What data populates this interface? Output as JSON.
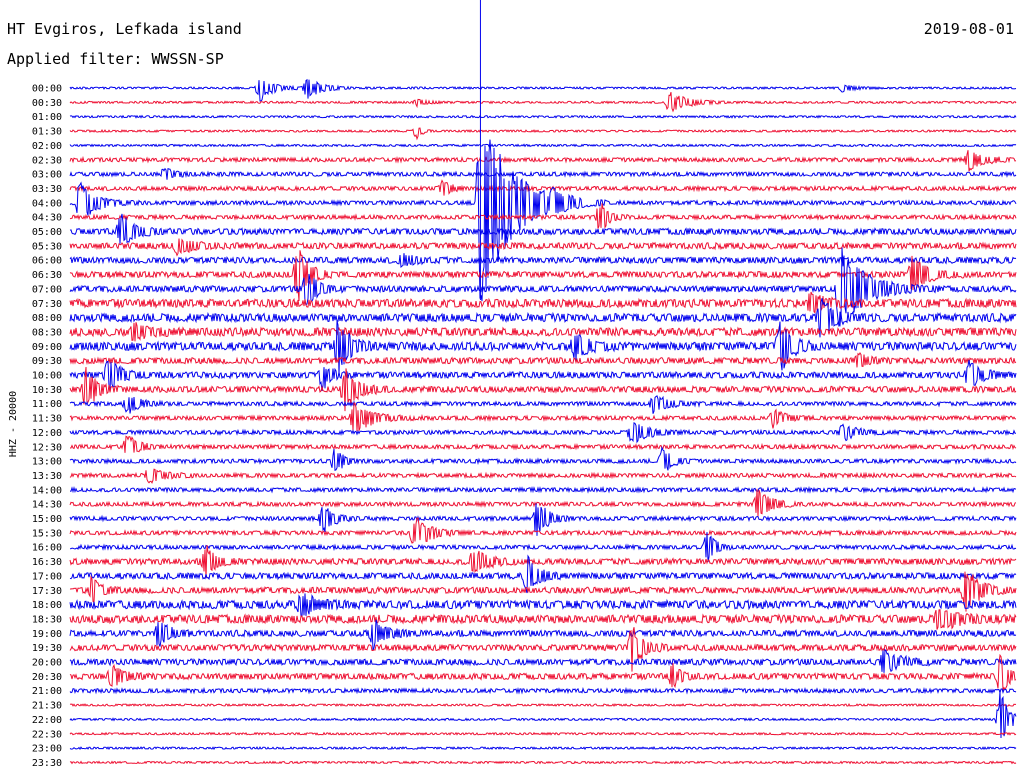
{
  "header": {
    "station": "HT Evgiros, Lefkada island",
    "date": "2019-08-01",
    "filter": "Applied filter: WWSSN-SP"
  },
  "chart_data": {
    "type": "line",
    "title": "HT Evgiros, Lefkada island",
    "subtitle": "Applied filter: WWSSN-SP",
    "ylabel": "HHZ - 20000",
    "date": "2019-08-01",
    "time_labels": [
      "00:00",
      "00:30",
      "01:00",
      "01:30",
      "02:00",
      "02:30",
      "03:00",
      "03:30",
      "04:00",
      "04:30",
      "05:00",
      "05:30",
      "06:00",
      "06:30",
      "07:00",
      "07:30",
      "08:00",
      "08:30",
      "09:00",
      "09:30",
      "10:00",
      "10:30",
      "11:00",
      "11:30",
      "12:00",
      "12:30",
      "13:00",
      "13:30",
      "14:00",
      "14:30",
      "15:00",
      "15:30",
      "16:00",
      "16:30",
      "17:00",
      "17:30",
      "18:00",
      "18:30",
      "19:00",
      "19:30",
      "20:00",
      "20:30",
      "21:00",
      "21:30",
      "22:00",
      "22:30",
      "23:00",
      "23:30"
    ],
    "row_colors": [
      "#0000ee",
      "#ee1133"
    ],
    "noise_level": [
      1,
      1,
      1,
      1,
      1,
      2,
      2,
      2,
      2,
      2,
      3,
      3,
      3,
      3,
      3,
      4,
      4,
      4,
      4,
      3,
      3,
      3,
      2,
      2,
      2,
      2,
      2,
      2,
      2,
      2,
      2,
      2,
      2,
      3,
      3,
      3,
      4,
      4,
      3,
      3,
      3,
      3,
      2,
      1,
      1,
      1,
      1,
      1
    ],
    "events": [
      {
        "row": 0,
        "minute": 6.0,
        "amplitude": 14,
        "duration": 1.0
      },
      {
        "row": 0,
        "minute": 7.5,
        "amplitude": 12,
        "duration": 1.0
      },
      {
        "row": 0,
        "minute": 24.5,
        "amplitude": 4,
        "duration": 0.8
      },
      {
        "row": 1,
        "minute": 11.0,
        "amplitude": 4,
        "duration": 0.8
      },
      {
        "row": 1,
        "minute": 19.0,
        "amplitude": 11,
        "duration": 1.5
      },
      {
        "row": 3,
        "minute": 11.0,
        "amplitude": 8,
        "duration": 0.3
      },
      {
        "row": 5,
        "minute": 28.5,
        "amplitude": 12,
        "duration": 1.0
      },
      {
        "row": 6,
        "minute": 3.0,
        "amplitude": 6,
        "duration": 0.8
      },
      {
        "row": 7,
        "minute": 11.8,
        "amplitude": 8,
        "duration": 0.6
      },
      {
        "row": 8,
        "minute": 0.3,
        "amplitude": 22,
        "duration": 1.2
      },
      {
        "row": 8,
        "minute": 13.0,
        "amplitude": 108,
        "duration": 2.5
      },
      {
        "row": 8,
        "minute": 15.3,
        "amplitude": 9,
        "duration": 0.8
      },
      {
        "row": 9,
        "minute": 16.8,
        "amplitude": 18,
        "duration": 0.6
      },
      {
        "row": 10,
        "minute": 1.6,
        "amplitude": 18,
        "duration": 1.0
      },
      {
        "row": 11,
        "minute": 3.4,
        "amplitude": 8,
        "duration": 1.2
      },
      {
        "row": 12,
        "minute": 10.5,
        "amplitude": 7,
        "duration": 1.0
      },
      {
        "row": 13,
        "minute": 7.2,
        "amplitude": 30,
        "duration": 0.8
      },
      {
        "row": 13,
        "minute": 26.7,
        "amplitude": 18,
        "duration": 1.2
      },
      {
        "row": 14,
        "minute": 7.5,
        "amplitude": 20,
        "duration": 0.8
      },
      {
        "row": 14,
        "minute": 24.4,
        "amplitude": 45,
        "duration": 2.0
      },
      {
        "row": 15,
        "minute": 23.5,
        "amplitude": 12,
        "duration": 1.0
      },
      {
        "row": 16,
        "minute": 23.8,
        "amplitude": 22,
        "duration": 1.0
      },
      {
        "row": 17,
        "minute": 2.0,
        "amplitude": 8,
        "duration": 1.2
      },
      {
        "row": 18,
        "minute": 8.5,
        "amplitude": 30,
        "duration": 0.8
      },
      {
        "row": 18,
        "minute": 16.0,
        "amplitude": 12,
        "duration": 1.2
      },
      {
        "row": 18,
        "minute": 22.5,
        "amplitude": 30,
        "duration": 0.8
      },
      {
        "row": 19,
        "minute": 25.0,
        "amplitude": 8,
        "duration": 0.8
      },
      {
        "row": 20,
        "minute": 1.2,
        "amplitude": 18,
        "duration": 1.0
      },
      {
        "row": 20,
        "minute": 8.0,
        "amplitude": 15,
        "duration": 0.6
      },
      {
        "row": 20,
        "minute": 28.5,
        "amplitude": 14,
        "duration": 1.0
      },
      {
        "row": 21,
        "minute": 0.5,
        "amplitude": 22,
        "duration": 0.8
      },
      {
        "row": 21,
        "minute": 8.7,
        "amplitude": 22,
        "duration": 1.0
      },
      {
        "row": 22,
        "minute": 1.8,
        "amplitude": 12,
        "duration": 0.8
      },
      {
        "row": 22,
        "minute": 18.5,
        "amplitude": 10,
        "duration": 1.0
      },
      {
        "row": 23,
        "minute": 9.0,
        "amplitude": 15,
        "duration": 1.5
      },
      {
        "row": 23,
        "minute": 22.3,
        "amplitude": 9,
        "duration": 1.0
      },
      {
        "row": 24,
        "minute": 17.8,
        "amplitude": 12,
        "duration": 1.2
      },
      {
        "row": 24,
        "minute": 24.5,
        "amplitude": 9,
        "duration": 1.0
      },
      {
        "row": 25,
        "minute": 1.8,
        "amplitude": 14,
        "duration": 0.8
      },
      {
        "row": 26,
        "minute": 8.4,
        "amplitude": 14,
        "duration": 0.6
      },
      {
        "row": 26,
        "minute": 18.8,
        "amplitude": 16,
        "duration": 0.6
      },
      {
        "row": 27,
        "minute": 2.5,
        "amplitude": 8,
        "duration": 1.2
      },
      {
        "row": 29,
        "minute": 21.8,
        "amplitude": 16,
        "duration": 1.0
      },
      {
        "row": 30,
        "minute": 8.0,
        "amplitude": 16,
        "duration": 0.8
      },
      {
        "row": 30,
        "minute": 14.8,
        "amplitude": 20,
        "duration": 0.8
      },
      {
        "row": 31,
        "minute": 10.9,
        "amplitude": 18,
        "duration": 1.2
      },
      {
        "row": 32,
        "minute": 20.2,
        "amplitude": 16,
        "duration": 0.6
      },
      {
        "row": 33,
        "minute": 4.3,
        "amplitude": 20,
        "duration": 0.6
      },
      {
        "row": 33,
        "minute": 12.8,
        "amplitude": 14,
        "duration": 1.0
      },
      {
        "row": 34,
        "minute": 14.5,
        "amplitude": 20,
        "duration": 0.8
      },
      {
        "row": 35,
        "minute": 0.7,
        "amplitude": 14,
        "duration": 0.6
      },
      {
        "row": 35,
        "minute": 28.4,
        "amplitude": 25,
        "duration": 1.0
      },
      {
        "row": 36,
        "minute": 7.3,
        "amplitude": 12,
        "duration": 1.2
      },
      {
        "row": 37,
        "minute": 27.5,
        "amplitude": 12,
        "duration": 1.5
      },
      {
        "row": 38,
        "minute": 2.8,
        "amplitude": 14,
        "duration": 0.8
      },
      {
        "row": 38,
        "minute": 9.6,
        "amplitude": 16,
        "duration": 1.0
      },
      {
        "row": 39,
        "minute": 17.8,
        "amplitude": 25,
        "duration": 0.8
      },
      {
        "row": 40,
        "minute": 25.8,
        "amplitude": 12,
        "duration": 1.2
      },
      {
        "row": 41,
        "minute": 1.3,
        "amplitude": 12,
        "duration": 1.0
      },
      {
        "row": 41,
        "minute": 19.1,
        "amplitude": 12,
        "duration": 0.6
      },
      {
        "row": 41,
        "minute": 29.5,
        "amplitude": 20,
        "duration": 0.6
      },
      {
        "row": 44,
        "minute": 29.5,
        "amplitude": 30,
        "duration": 0.6
      }
    ],
    "marker_minute": 13.0,
    "grid": false,
    "legend": "none"
  }
}
